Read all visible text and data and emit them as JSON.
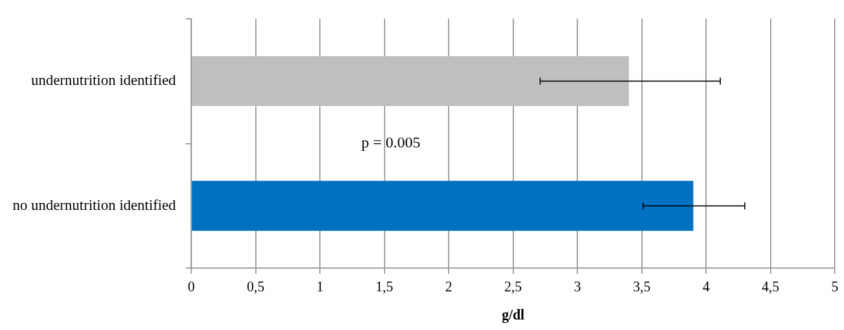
{
  "chart_data": {
    "type": "bar",
    "orientation": "horizontal",
    "categories": [
      "undernutrition identified",
      "no undernutrition identified"
    ],
    "values": [
      3.4,
      3.9
    ],
    "colors": [
      "#bfbfbf",
      "#0070c0"
    ],
    "errors": [
      [
        2.71,
        4.11
      ],
      [
        3.51,
        4.3
      ]
    ],
    "xlim": [
      0,
      5
    ],
    "xticks": [
      {
        "value": 0,
        "label": "0"
      },
      {
        "value": 0.5,
        "label": "0,5"
      },
      {
        "value": 1,
        "label": "1"
      },
      {
        "value": 1.5,
        "label": "1,5"
      },
      {
        "value": 2,
        "label": "2"
      },
      {
        "value": 2.5,
        "label": "2,5"
      },
      {
        "value": 3,
        "label": "3"
      },
      {
        "value": 3.5,
        "label": "3,5"
      },
      {
        "value": 4,
        "label": "4"
      },
      {
        "value": 4.5,
        "label": "4,5"
      },
      {
        "value": 5,
        "label": "5"
      }
    ],
    "xlabel": "g/dl",
    "grid": "x",
    "annotations": [
      "p = 0.005"
    ]
  }
}
